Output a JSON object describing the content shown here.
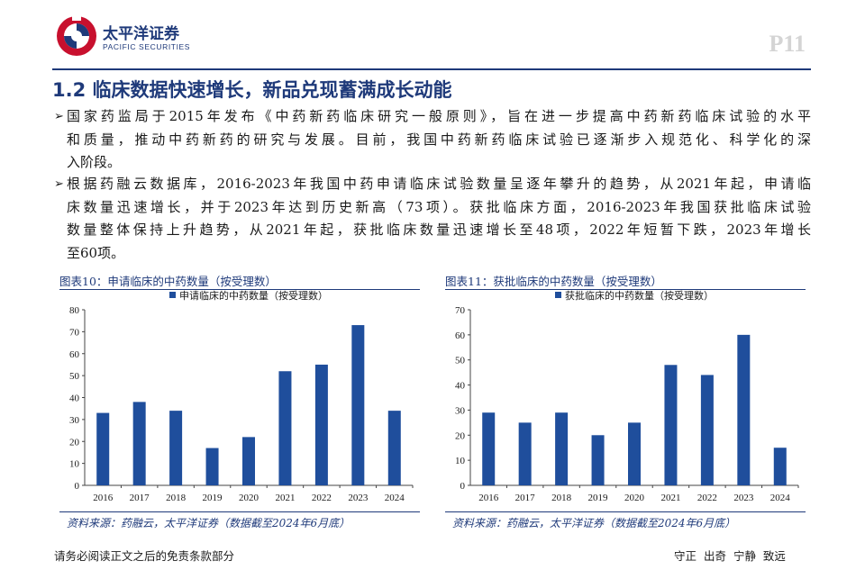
{
  "header": {
    "logo_cn": "太平洋证券",
    "logo_en": "PACIFIC SECURITIES",
    "page_number": "P11"
  },
  "section": {
    "title": "1.2 临床数据快速增长，新品兑现蓄满成长动能"
  },
  "paragraphs": [
    {
      "bullet": "➢",
      "lines": [
        "国家药监局于2015年发布《中药新药临床研究一般原则》，旨在进一步提高中药新药临床试验的水平",
        "和质量，推动中药新药的研究与发展。目前，我国中药新药临床试验已逐渐步入规范化、科学化的深",
        "入阶段。"
      ]
    },
    {
      "bullet": "➢",
      "lines": [
        "根据药融云数据库，2016-2023年我国中药申请临床试验数量呈逐年攀升的趋势，从2021年起，申请临",
        "床数量迅速增长，并于2023年达到历史新高（73项）。获批临床方面，2016-2023年我国获批临床试验",
        "数量整体保持上升趋势，从2021年起，获批临床数量迅速增长至48项，2022年短暂下跌，2023年增长",
        "至60项。"
      ]
    }
  ],
  "charts": [
    {
      "title": "图表10：申请临床的中药数量（按受理数）",
      "source": "资料来源：药融云，太平洋证券（数据截至2024年6月底）"
    },
    {
      "title": "图表11：获批临床的中药数量（按受理数）",
      "source": "资料来源：药融云，太平洋证券（数据截至2024年6月底）"
    }
  ],
  "chart_data": [
    {
      "type": "bar",
      "categories": [
        "2016",
        "2017",
        "2018",
        "2019",
        "2020",
        "2021",
        "2022",
        "2023",
        "2024"
      ],
      "series": [
        {
          "name": "申请临床的中药数量（按受理数）",
          "values": [
            33,
            38,
            34,
            17,
            22,
            52,
            55,
            73,
            34
          ]
        }
      ],
      "ylim": [
        0,
        80
      ],
      "yticks": [
        0,
        10,
        20,
        30,
        40,
        50,
        60,
        70,
        80
      ],
      "legend": "top",
      "grid": false,
      "color": "#1f4e9c"
    },
    {
      "type": "bar",
      "categories": [
        "2016",
        "2017",
        "2018",
        "2019",
        "2020",
        "2021",
        "2022",
        "2023",
        "2024"
      ],
      "series": [
        {
          "name": "获批临床的中药数量（按受理数）",
          "values": [
            29,
            25,
            29,
            20,
            25,
            48,
            44,
            60,
            15
          ]
        }
      ],
      "ylim": [
        0,
        70
      ],
      "yticks": [
        0,
        10,
        20,
        30,
        40,
        50,
        60,
        70
      ],
      "legend": "top",
      "grid": false,
      "color": "#1f4e9c"
    }
  ],
  "footer": {
    "disclaimer": "请务必阅读正文之后的免责条款部分",
    "motto": "守正 出奇 宁静 致远"
  },
  "colors": {
    "brand_blue": "#1f3a7a",
    "bar_blue": "#1f4e9c",
    "logo_red": "#c8102e"
  }
}
